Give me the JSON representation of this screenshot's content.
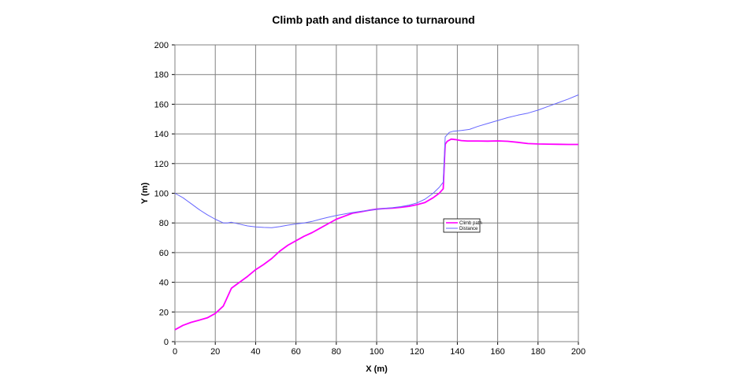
{
  "chart_data": {
    "type": "line",
    "title": "Climb path and distance to turnaround",
    "xlabel": "X (m)",
    "ylabel": "Y (m)",
    "xlim": [
      0,
      200
    ],
    "ylim": [
      0,
      200
    ],
    "x_ticks": [
      "0",
      "20",
      "40",
      "60",
      "80",
      "100",
      "120",
      "140",
      "160",
      "180",
      "200"
    ],
    "y_ticks": [
      "0",
      "20",
      "40",
      "60",
      "80",
      "100",
      "120",
      "140",
      "160",
      "180",
      "200"
    ],
    "grid": true,
    "legend_position": "center-right",
    "series": [
      {
        "name": "Climb path",
        "color": "#ff00ff",
        "points": [
          [
            0,
            8
          ],
          [
            4,
            11
          ],
          [
            8,
            13
          ],
          [
            12,
            14.5
          ],
          [
            16,
            16
          ],
          [
            20,
            19
          ],
          [
            24,
            24
          ],
          [
            26,
            30
          ],
          [
            28,
            36
          ],
          [
            32,
            40
          ],
          [
            36,
            44
          ],
          [
            40,
            48.5
          ],
          [
            44,
            52
          ],
          [
            48,
            56
          ],
          [
            52,
            61
          ],
          [
            56,
            65
          ],
          [
            60,
            68
          ],
          [
            64,
            71
          ],
          [
            68,
            73.5
          ],
          [
            72,
            76.5
          ],
          [
            76,
            79.5
          ],
          [
            80,
            82.5
          ],
          [
            84,
            84.5
          ],
          [
            88,
            86.5
          ],
          [
            92,
            87.5
          ],
          [
            96,
            88.5
          ],
          [
            100,
            89.3
          ],
          [
            104,
            89.7
          ],
          [
            108,
            90
          ],
          [
            112,
            90.5
          ],
          [
            116,
            91.2
          ],
          [
            120,
            92.3
          ],
          [
            124,
            93.8
          ],
          [
            128,
            97
          ],
          [
            131,
            100
          ],
          [
            133,
            103
          ],
          [
            133.6,
            122
          ],
          [
            134,
            133
          ],
          [
            135,
            135
          ],
          [
            137,
            136.5
          ],
          [
            139,
            136.2
          ],
          [
            142,
            135.5
          ],
          [
            145,
            135.2
          ],
          [
            150,
            135.2
          ],
          [
            155,
            135.1
          ],
          [
            160,
            135.3
          ],
          [
            165,
            135
          ],
          [
            170,
            134.3
          ],
          [
            175,
            133.5
          ],
          [
            180,
            133.2
          ],
          [
            185,
            133.1
          ],
          [
            190,
            133
          ],
          [
            195,
            132.9
          ],
          [
            200,
            132.9
          ]
        ]
      },
      {
        "name": "Distance",
        "color": "#6666ff",
        "points": [
          [
            0,
            100
          ],
          [
            4,
            97
          ],
          [
            8,
            93
          ],
          [
            12,
            89
          ],
          [
            16,
            85.5
          ],
          [
            20,
            82.5
          ],
          [
            24,
            80
          ],
          [
            26,
            80
          ],
          [
            28,
            80.5
          ],
          [
            32,
            79.2
          ],
          [
            36,
            78
          ],
          [
            40,
            77.3
          ],
          [
            44,
            77
          ],
          [
            48,
            76.8
          ],
          [
            52,
            77.5
          ],
          [
            56,
            78.5
          ],
          [
            60,
            79.3
          ],
          [
            64,
            80
          ],
          [
            68,
            81
          ],
          [
            72,
            82.5
          ],
          [
            76,
            83.8
          ],
          [
            80,
            85
          ],
          [
            84,
            86
          ],
          [
            88,
            87
          ],
          [
            92,
            87.8
          ],
          [
            96,
            88.5
          ],
          [
            100,
            89.2
          ],
          [
            104,
            89.8
          ],
          [
            108,
            90.3
          ],
          [
            112,
            91
          ],
          [
            116,
            92
          ],
          [
            120,
            93.5
          ],
          [
            124,
            96
          ],
          [
            128,
            100
          ],
          [
            131,
            104
          ],
          [
            133,
            107.5
          ],
          [
            133.6,
            125
          ],
          [
            134,
            138
          ],
          [
            136,
            141
          ],
          [
            138,
            141.8
          ],
          [
            142,
            142.3
          ],
          [
            146,
            143
          ],
          [
            150,
            145
          ],
          [
            155,
            147
          ],
          [
            160,
            149
          ],
          [
            165,
            151
          ],
          [
            170,
            152.6
          ],
          [
            175,
            154
          ],
          [
            180,
            156
          ],
          [
            185,
            158.5
          ],
          [
            190,
            161
          ],
          [
            195,
            163.5
          ],
          [
            200,
            166.3
          ]
        ]
      }
    ]
  }
}
